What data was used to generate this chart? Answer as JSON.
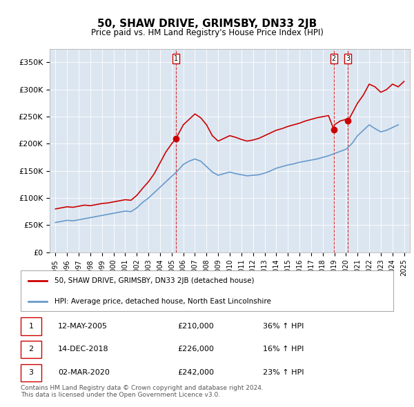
{
  "title": "50, SHAW DRIVE, GRIMSBY, DN33 2JB",
  "subtitle": "Price paid vs. HM Land Registry's House Price Index (HPI)",
  "bg_color": "#dce6f1",
  "plot_bg_color": "#dce6f1",
  "red_line_label": "50, SHAW DRIVE, GRIMSBY, DN33 2JB (detached house)",
  "blue_line_label": "HPI: Average price, detached house, North East Lincolnshire",
  "footer": "Contains HM Land Registry data © Crown copyright and database right 2024.\nThis data is licensed under the Open Government Licence v3.0.",
  "transactions": [
    {
      "num": 1,
      "date": "12-MAY-2005",
      "price": "£210,000",
      "hpi": "36% ↑ HPI",
      "year": 2005.37
    },
    {
      "num": 2,
      "date": "14-DEC-2018",
      "price": "£226,000",
      "hpi": "16% ↑ HPI",
      "year": 2018.96
    },
    {
      "num": 3,
      "date": "02-MAR-2020",
      "price": "£242,000",
      "hpi": "23% ↑ HPI",
      "year": 2020.17
    }
  ],
  "ylim": [
    0,
    375000
  ],
  "xlim_start": 1994.5,
  "xlim_end": 2025.5,
  "yticks": [
    0,
    50000,
    100000,
    150000,
    200000,
    250000,
    300000,
    350000
  ],
  "ytick_labels": [
    "£0",
    "£50K",
    "£100K",
    "£150K",
    "£200K",
    "£250K",
    "£300K",
    "£350K"
  ],
  "red_x": [
    1995.0,
    1995.5,
    1996.0,
    1996.5,
    1997.0,
    1997.5,
    1998.0,
    1998.5,
    1999.0,
    1999.5,
    2000.0,
    2000.5,
    2001.0,
    2001.5,
    2002.0,
    2002.5,
    2003.0,
    2003.5,
    2004.0,
    2004.5,
    2005.0,
    2005.37,
    2005.5,
    2006.0,
    2006.5,
    2007.0,
    2007.5,
    2008.0,
    2008.5,
    2009.0,
    2009.5,
    2010.0,
    2010.5,
    2011.0,
    2011.5,
    2012.0,
    2012.5,
    2013.0,
    2013.5,
    2014.0,
    2014.5,
    2015.0,
    2015.5,
    2016.0,
    2016.5,
    2017.0,
    2017.5,
    2018.0,
    2018.5,
    2018.96,
    2019.0,
    2019.5,
    2020.0,
    2020.17,
    2020.5,
    2021.0,
    2021.5,
    2022.0,
    2022.5,
    2023.0,
    2023.5,
    2024.0,
    2024.5,
    2025.0
  ],
  "red_y": [
    80000,
    82000,
    84000,
    83000,
    85000,
    87000,
    86000,
    88000,
    90000,
    91000,
    93000,
    95000,
    97000,
    96000,
    105000,
    118000,
    130000,
    145000,
    165000,
    185000,
    200000,
    210000,
    215000,
    235000,
    245000,
    255000,
    248000,
    235000,
    215000,
    205000,
    210000,
    215000,
    212000,
    208000,
    205000,
    207000,
    210000,
    215000,
    220000,
    225000,
    228000,
    232000,
    235000,
    238000,
    242000,
    245000,
    248000,
    250000,
    252000,
    226000,
    235000,
    242000,
    245000,
    242000,
    255000,
    275000,
    290000,
    310000,
    305000,
    295000,
    300000,
    310000,
    305000,
    315000
  ],
  "blue_x": [
    1995.0,
    1995.5,
    1996.0,
    1996.5,
    1997.0,
    1997.5,
    1998.0,
    1998.5,
    1999.0,
    1999.5,
    2000.0,
    2000.5,
    2001.0,
    2001.5,
    2002.0,
    2002.5,
    2003.0,
    2003.5,
    2004.0,
    2004.5,
    2005.0,
    2005.5,
    2006.0,
    2006.5,
    2007.0,
    2007.5,
    2008.0,
    2008.5,
    2009.0,
    2009.5,
    2010.0,
    2010.5,
    2011.0,
    2011.5,
    2012.0,
    2012.5,
    2013.0,
    2013.5,
    2014.0,
    2014.5,
    2015.0,
    2015.5,
    2016.0,
    2016.5,
    2017.0,
    2017.5,
    2018.0,
    2018.5,
    2019.0,
    2019.5,
    2020.0,
    2020.5,
    2021.0,
    2021.5,
    2022.0,
    2022.5,
    2023.0,
    2023.5,
    2024.0,
    2024.5
  ],
  "blue_y": [
    55000,
    57000,
    59000,
    58000,
    60000,
    62000,
    64000,
    66000,
    68000,
    70000,
    72000,
    74000,
    76000,
    75000,
    82000,
    92000,
    100000,
    110000,
    120000,
    130000,
    140000,
    150000,
    162000,
    168000,
    172000,
    168000,
    158000,
    148000,
    142000,
    145000,
    148000,
    145000,
    143000,
    141000,
    142000,
    143000,
    146000,
    150000,
    155000,
    158000,
    161000,
    163000,
    166000,
    168000,
    170000,
    172000,
    175000,
    178000,
    182000,
    186000,
    190000,
    200000,
    215000,
    225000,
    235000,
    228000,
    222000,
    225000,
    230000,
    235000
  ]
}
